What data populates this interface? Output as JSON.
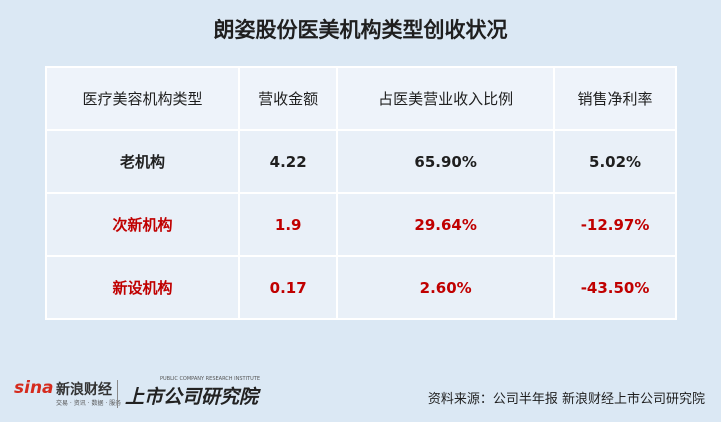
{
  "header": {
    "title": "朗姿股份医美机构类型创收状况"
  },
  "table": {
    "columns": [
      "医疗美容机构类型",
      "营收金额",
      "占医美营业收入比例",
      "销售净利率"
    ],
    "rows": [
      [
        "老机构",
        "4.22",
        "65.90%",
        "5.02%"
      ],
      [
        "次新机构",
        "1.9",
        "29.64%",
        "-12.97%"
      ],
      [
        "新设机构",
        "0.17",
        "2.60%",
        "-43.50%"
      ]
    ]
  },
  "footer": {
    "logo_sina": "sina",
    "logo_sina_name": "新浪财经",
    "logo_sina_tagline": "交易 · 资讯 · 数据 · 服务",
    "logo_institute": "上市公司研究院",
    "logo_institute_en": "PUBLIC COMPANY RESEARCH INSTITUTE",
    "source": "资料来源：公司半年报 新浪财经上市公司研究院"
  }
}
